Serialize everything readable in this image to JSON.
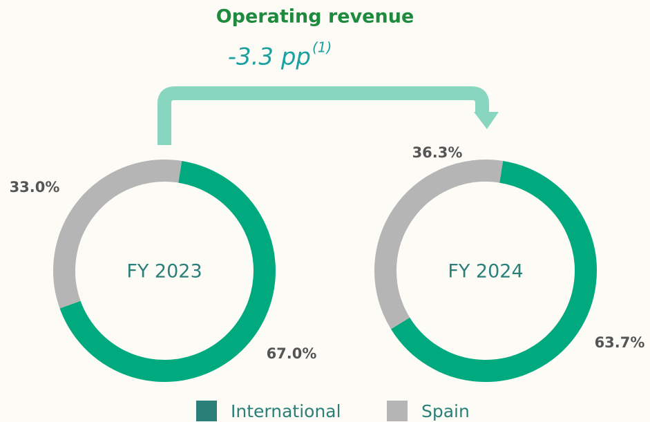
{
  "title": "Operating revenue",
  "annotation": "-3.3 pp",
  "annotation_note": "(1)",
  "legend": [
    {
      "name": "International",
      "color": "#2a8078"
    },
    {
      "name": "Spain",
      "color": "#b5b5b5"
    }
  ],
  "chart_data": [
    {
      "type": "pie",
      "donut": true,
      "center_label": "FY 2023",
      "categories": [
        "International",
        "Spain"
      ],
      "values": [
        67.0,
        33.0
      ],
      "value_labels": [
        "67.0%",
        "33.0%"
      ],
      "colors": [
        "#00a97e",
        "#b5b5b5"
      ]
    },
    {
      "type": "pie",
      "donut": true,
      "center_label": "FY 2024",
      "categories": [
        "International",
        "Spain"
      ],
      "values": [
        63.7,
        36.3
      ],
      "value_labels": [
        "63.7%",
        "36.3%"
      ],
      "colors": [
        "#00a97e",
        "#b5b5b5"
      ]
    }
  ]
}
